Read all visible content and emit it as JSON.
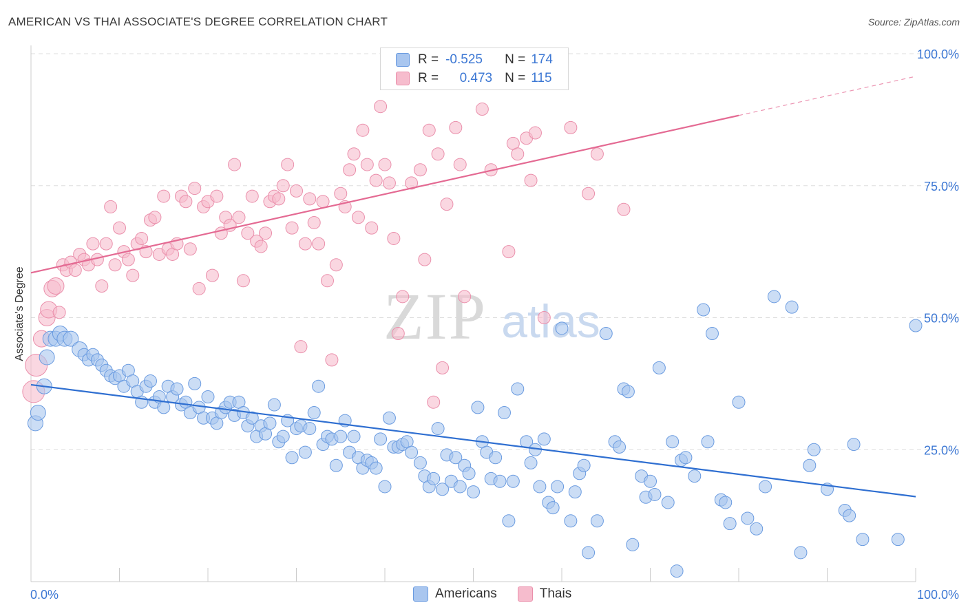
{
  "title": "AMERICAN VS THAI ASSOCIATE'S DEGREE CORRELATION CHART",
  "source": "Source: ZipAtlas.com",
  "watermark": {
    "zip": "ZIP",
    "atlas": "atlas"
  },
  "legend": {
    "rows": [
      {
        "r_label": "R =",
        "r_value": "-0.525",
        "n_label": "N =",
        "n_value": "174"
      },
      {
        "r_label": "R =",
        "r_value": "0.473",
        "n_label": "N =",
        "n_value": "115"
      }
    ]
  },
  "bottom_legend": {
    "americans": "Americans",
    "thais": "Thais"
  },
  "colors": {
    "blue_fill": "#a9c6ef",
    "blue_stroke": "#6a9be0",
    "blue_line": "#2f6fd1",
    "pink_fill": "#f6bccd",
    "pink_stroke": "#ea8fab",
    "pink_line": "#e46a93",
    "axis_label": "#3d78d4",
    "grid": "#dddddd"
  },
  "chart_data": {
    "type": "scatter",
    "title": "AMERICAN VS THAI ASSOCIATE'S DEGREE CORRELATION CHART",
    "ylabel": "Associate's Degree",
    "xlabel": "",
    "x_tick_labels": [
      "0.0%",
      "100.0%"
    ],
    "y_tick_labels": [
      "25.0%",
      "50.0%",
      "75.0%",
      "100.0%"
    ],
    "xlim": [
      0,
      100
    ],
    "ylim": [
      0,
      100
    ],
    "grid": true,
    "series": [
      {
        "name": "Americans",
        "R": -0.525,
        "N": 174,
        "trend": {
          "x": [
            0,
            100
          ],
          "y": [
            37.3,
            16.1
          ]
        },
        "points": [
          [
            0.5,
            30
          ],
          [
            0.8,
            32
          ],
          [
            1.5,
            37
          ],
          [
            1.8,
            42.5
          ],
          [
            2.2,
            46
          ],
          [
            2.8,
            46
          ],
          [
            3.3,
            47
          ],
          [
            3.8,
            46
          ],
          [
            4.5,
            46
          ],
          [
            5.5,
            44
          ],
          [
            6,
            43
          ],
          [
            6.5,
            42
          ],
          [
            7,
            43
          ],
          [
            7.5,
            42
          ],
          [
            8,
            41
          ],
          [
            8.5,
            40
          ],
          [
            9,
            39
          ],
          [
            9.5,
            38.5
          ],
          [
            10,
            39
          ],
          [
            10.5,
            37
          ],
          [
            11,
            40
          ],
          [
            11.5,
            38
          ],
          [
            12,
            36
          ],
          [
            12.5,
            34
          ],
          [
            13,
            37
          ],
          [
            13.5,
            38
          ],
          [
            14,
            34
          ],
          [
            14.5,
            35
          ],
          [
            15,
            33
          ],
          [
            15.5,
            37
          ],
          [
            16,
            35
          ],
          [
            16.5,
            36.5
          ],
          [
            17,
            33.5
          ],
          [
            17.5,
            34
          ],
          [
            18,
            32
          ],
          [
            18.5,
            37.5
          ],
          [
            19,
            33
          ],
          [
            19.5,
            31
          ],
          [
            20,
            35
          ],
          [
            20.5,
            31
          ],
          [
            21,
            30
          ],
          [
            21.5,
            32
          ],
          [
            22,
            33
          ],
          [
            22.5,
            34
          ],
          [
            23,
            31.5
          ],
          [
            23.5,
            34
          ],
          [
            24,
            32
          ],
          [
            24.5,
            29.5
          ],
          [
            25,
            31
          ],
          [
            25.5,
            27.5
          ],
          [
            26,
            29.5
          ],
          [
            26.5,
            28
          ],
          [
            27,
            30
          ],
          [
            27.5,
            33.5
          ],
          [
            28,
            26.5
          ],
          [
            28.5,
            27.5
          ],
          [
            29,
            30.5
          ],
          [
            29.5,
            23.5
          ],
          [
            30,
            29
          ],
          [
            30.5,
            29.5
          ],
          [
            31,
            24.5
          ],
          [
            31.5,
            29
          ],
          [
            32,
            32
          ],
          [
            32.5,
            37
          ],
          [
            33,
            26
          ],
          [
            33.5,
            27.5
          ],
          [
            34,
            27
          ],
          [
            34.5,
            22
          ],
          [
            35,
            27.5
          ],
          [
            35.5,
            30.5
          ],
          [
            36,
            24.5
          ],
          [
            36.5,
            27.5
          ],
          [
            37,
            23.5
          ],
          [
            37.5,
            21.5
          ],
          [
            38,
            23
          ],
          [
            38.5,
            22.5
          ],
          [
            39,
            21.5
          ],
          [
            39.5,
            27
          ],
          [
            40,
            18
          ],
          [
            40.5,
            31
          ],
          [
            41,
            25.5
          ],
          [
            41.5,
            25.5
          ],
          [
            42,
            26
          ],
          [
            42.5,
            26.5
          ],
          [
            43,
            24.5
          ],
          [
            44,
            22.5
          ],
          [
            44.5,
            20
          ],
          [
            45,
            18
          ],
          [
            45.5,
            19.5
          ],
          [
            46,
            29
          ],
          [
            46.5,
            17.5
          ],
          [
            47,
            24
          ],
          [
            47.5,
            19
          ],
          [
            48,
            23.5
          ],
          [
            48.5,
            18
          ],
          [
            49,
            22
          ],
          [
            49.5,
            20.5
          ],
          [
            50,
            17
          ],
          [
            50.5,
            33
          ],
          [
            51,
            26.5
          ],
          [
            51.5,
            24.5
          ],
          [
            52,
            19.5
          ],
          [
            52.5,
            23.5
          ],
          [
            53,
            19
          ],
          [
            53.5,
            32
          ],
          [
            54,
            11.5
          ],
          [
            54.5,
            19
          ],
          [
            55,
            36.5
          ],
          [
            56,
            26.5
          ],
          [
            56.5,
            22.5
          ],
          [
            57,
            25
          ],
          [
            57.5,
            18
          ],
          [
            58,
            27
          ],
          [
            58.5,
            15
          ],
          [
            59,
            14
          ],
          [
            59.5,
            18
          ],
          [
            60,
            48
          ],
          [
            61,
            11.5
          ],
          [
            61.5,
            17
          ],
          [
            62,
            20.5
          ],
          [
            62.5,
            22
          ],
          [
            63,
            5.5
          ],
          [
            64,
            11.5
          ],
          [
            65,
            47
          ],
          [
            66,
            26.5
          ],
          [
            66.5,
            25.5
          ],
          [
            67,
            36.5
          ],
          [
            67.5,
            36
          ],
          [
            68,
            7
          ],
          [
            69,
            20
          ],
          [
            69.5,
            16
          ],
          [
            70,
            19
          ],
          [
            70.5,
            16.5
          ],
          [
            71,
            40.5
          ],
          [
            72,
            15
          ],
          [
            72.5,
            26.5
          ],
          [
            73,
            2
          ],
          [
            73.5,
            23
          ],
          [
            74,
            23.5
          ],
          [
            75,
            20
          ],
          [
            76,
            51.5
          ],
          [
            76.5,
            26.5
          ],
          [
            77,
            47
          ],
          [
            78,
            15.5
          ],
          [
            78.5,
            15
          ],
          [
            79,
            11
          ],
          [
            80,
            34
          ],
          [
            81,
            12
          ],
          [
            82,
            10
          ],
          [
            83,
            18
          ],
          [
            84,
            54
          ],
          [
            86,
            52
          ],
          [
            87,
            5.5
          ],
          [
            88,
            22
          ],
          [
            88.5,
            25
          ],
          [
            90,
            17.5
          ],
          [
            92,
            13.5
          ],
          [
            92.5,
            12.5
          ],
          [
            93,
            26
          ],
          [
            94,
            8
          ],
          [
            98,
            8
          ],
          [
            100,
            48.5
          ]
        ]
      },
      {
        "name": "Thais",
        "R": 0.473,
        "N": 115,
        "trend": {
          "x": [
            0,
            80
          ],
          "y": [
            58.5,
            88.3
          ]
        },
        "trend_dashed": {
          "x": [
            80,
            100
          ],
          "y": [
            88.3,
            95.7
          ]
        },
        "points": [
          [
            0.3,
            36
          ],
          [
            0.6,
            41
          ],
          [
            1.2,
            46
          ],
          [
            1.8,
            50
          ],
          [
            2,
            51.5
          ],
          [
            2.4,
            55.5
          ],
          [
            2.8,
            56
          ],
          [
            3.2,
            51
          ],
          [
            3.6,
            60
          ],
          [
            4,
            59
          ],
          [
            4.5,
            60.5
          ],
          [
            5,
            59
          ],
          [
            5.5,
            62
          ],
          [
            6,
            61
          ],
          [
            6.5,
            60
          ],
          [
            7,
            64
          ],
          [
            7.5,
            61
          ],
          [
            8,
            56
          ],
          [
            8.5,
            64
          ],
          [
            9,
            71
          ],
          [
            9.5,
            60
          ],
          [
            10,
            67
          ],
          [
            10.5,
            62.5
          ],
          [
            11,
            61
          ],
          [
            11.5,
            58
          ],
          [
            12,
            64
          ],
          [
            12.5,
            65
          ],
          [
            13,
            62.5
          ],
          [
            13.5,
            68.5
          ],
          [
            14,
            69
          ],
          [
            14.5,
            62
          ],
          [
            15,
            73
          ],
          [
            15.5,
            63
          ],
          [
            16,
            62
          ],
          [
            16.5,
            64
          ],
          [
            17,
            73
          ],
          [
            17.5,
            72
          ],
          [
            18,
            63
          ],
          [
            18.5,
            74.5
          ],
          [
            19,
            55.5
          ],
          [
            19.5,
            71
          ],
          [
            20,
            72
          ],
          [
            20.5,
            58
          ],
          [
            21,
            73
          ],
          [
            21.5,
            66
          ],
          [
            22,
            69
          ],
          [
            22.5,
            67.5
          ],
          [
            23,
            79
          ],
          [
            23.5,
            69
          ],
          [
            24,
            57
          ],
          [
            24.5,
            66
          ],
          [
            25,
            73
          ],
          [
            25.5,
            64.5
          ],
          [
            26,
            63.5
          ],
          [
            26.5,
            66
          ],
          [
            27,
            72
          ],
          [
            27.5,
            73
          ],
          [
            28,
            72.5
          ],
          [
            28.5,
            75
          ],
          [
            29,
            79
          ],
          [
            29.5,
            67
          ],
          [
            30,
            74
          ],
          [
            30.5,
            44.5
          ],
          [
            31,
            64
          ],
          [
            31.5,
            72.5
          ],
          [
            32,
            68
          ],
          [
            32.5,
            64
          ],
          [
            33,
            72
          ],
          [
            33.5,
            57
          ],
          [
            34,
            42
          ],
          [
            34.5,
            60
          ],
          [
            35,
            73.5
          ],
          [
            35.5,
            71
          ],
          [
            36,
            78
          ],
          [
            36.5,
            81
          ],
          [
            37,
            69
          ],
          [
            37.5,
            85.5
          ],
          [
            38,
            79
          ],
          [
            38.5,
            67
          ],
          [
            39,
            76
          ],
          [
            39.5,
            90
          ],
          [
            40,
            79
          ],
          [
            40.5,
            75.5
          ],
          [
            41,
            65
          ],
          [
            41.5,
            47
          ],
          [
            42,
            54
          ],
          [
            43,
            75.5
          ],
          [
            44,
            78
          ],
          [
            44.5,
            61
          ],
          [
            45,
            85.5
          ],
          [
            45.5,
            34
          ],
          [
            46,
            81
          ],
          [
            46.5,
            40.5
          ],
          [
            47,
            71.5
          ],
          [
            48,
            86
          ],
          [
            48.5,
            79
          ],
          [
            49,
            54
          ],
          [
            51,
            89.5
          ],
          [
            52,
            78
          ],
          [
            54,
            62.5
          ],
          [
            54.5,
            83
          ],
          [
            55,
            81
          ],
          [
            56,
            84
          ],
          [
            56.5,
            76
          ],
          [
            57,
            85
          ],
          [
            58,
            50
          ],
          [
            61,
            86
          ],
          [
            63,
            73.5
          ],
          [
            64,
            81
          ],
          [
            67,
            70.5
          ]
        ]
      }
    ]
  }
}
